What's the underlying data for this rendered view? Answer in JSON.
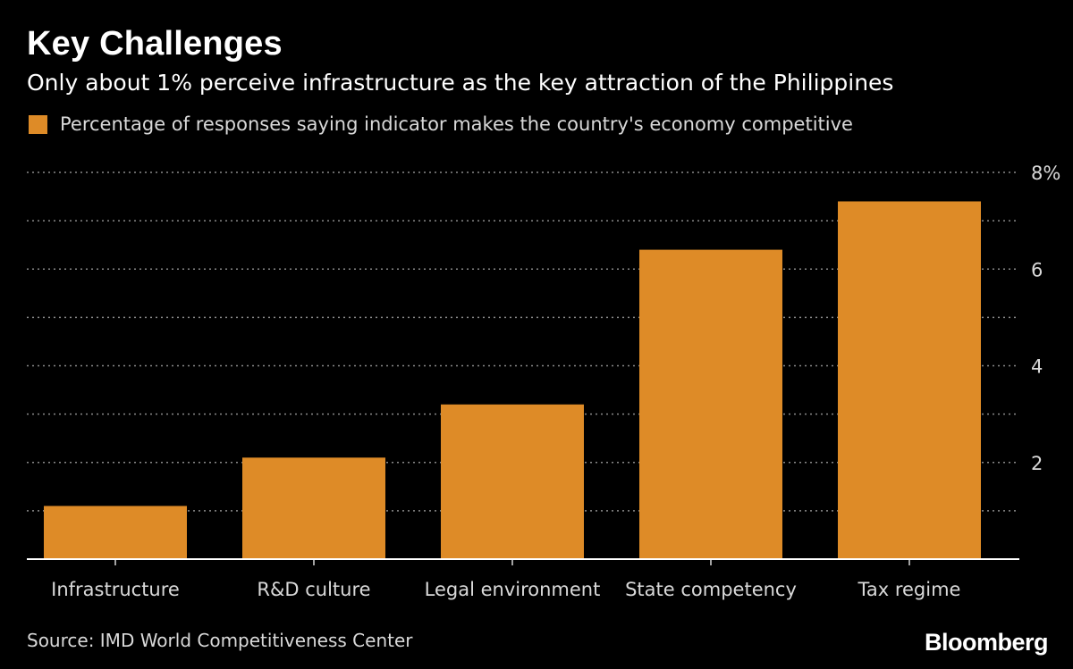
{
  "header": {
    "title": "Key Challenges",
    "subtitle": "Only about 1% perceive infrastructure as the key attraction of the Philippines"
  },
  "legend": {
    "label": "Percentage of responses saying indicator makes the country's economy competitive"
  },
  "footer": {
    "source": "Source: IMD World Competitiveness Center",
    "brand": "Bloomberg"
  },
  "colors": {
    "background": "#000000",
    "bar": "#de8b27",
    "grid": "#8a8a8a",
    "text": "#ffffff",
    "axis_text": "#d9d9d9"
  },
  "chart_data": {
    "type": "bar",
    "categories": [
      "Infrastructure",
      "R&D culture",
      "Legal environment",
      "State competency",
      "Tax regime"
    ],
    "series": [
      {
        "name": "Percentage of responses saying indicator makes the country's economy competitive",
        "values": [
          1.1,
          2.1,
          3.2,
          6.4,
          7.4
        ]
      }
    ],
    "ylim": [
      0,
      8
    ],
    "yticks": [
      2,
      4,
      6,
      8
    ],
    "ytick_labels": [
      "2",
      "4",
      "6",
      "8%"
    ],
    "y_axis_side": "right",
    "grid": true,
    "legend_position": "top-left"
  }
}
